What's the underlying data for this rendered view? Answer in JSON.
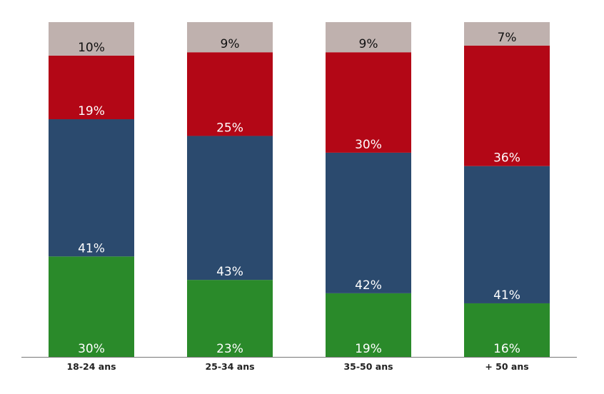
{
  "chart_data": {
    "type": "bar",
    "stacked": true,
    "title": "",
    "xlabel": "",
    "ylabel": "",
    "ylim": [
      0,
      100
    ],
    "grid": false,
    "categories": [
      "18-24 ans",
      "25-34 ans",
      "35-50 ans",
      "+ 50 ans"
    ],
    "series": [
      {
        "name": "series-1",
        "color": "#2a8a2a",
        "values": [
          30,
          23,
          19,
          16
        ]
      },
      {
        "name": "series-2",
        "color": "#2b4a6e",
        "values": [
          41,
          43,
          42,
          41
        ]
      },
      {
        "name": "series-3",
        "color": "#b30716",
        "values": [
          19,
          25,
          30,
          36
        ]
      },
      {
        "name": "series-4",
        "color": "#bfb1ae",
        "values": [
          10,
          9,
          9,
          7
        ]
      }
    ],
    "data_label_suffix": "%"
  }
}
